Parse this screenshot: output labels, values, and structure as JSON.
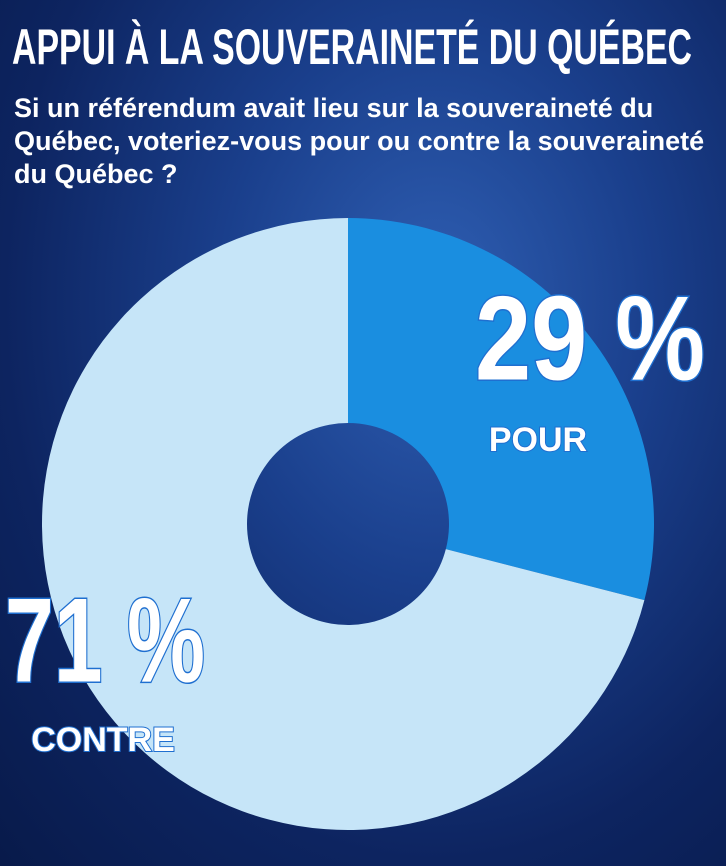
{
  "chart_data": {
    "type": "pie",
    "title": "APPUI À LA SOUVERAINETÉ DU QUÉBEC",
    "subtitle": "Si un référendum avait lieu sur la souveraineté du Québec, voteriez-vous pour ou contre la souveraineté du Québec ?",
    "categories": [
      "POUR",
      "CONTRE"
    ],
    "values": [
      29,
      71
    ],
    "value_labels": [
      "29 %",
      "71 %"
    ],
    "colors": [
      "#1a8ee0",
      "#c6e5f8"
    ],
    "donut": true
  }
}
